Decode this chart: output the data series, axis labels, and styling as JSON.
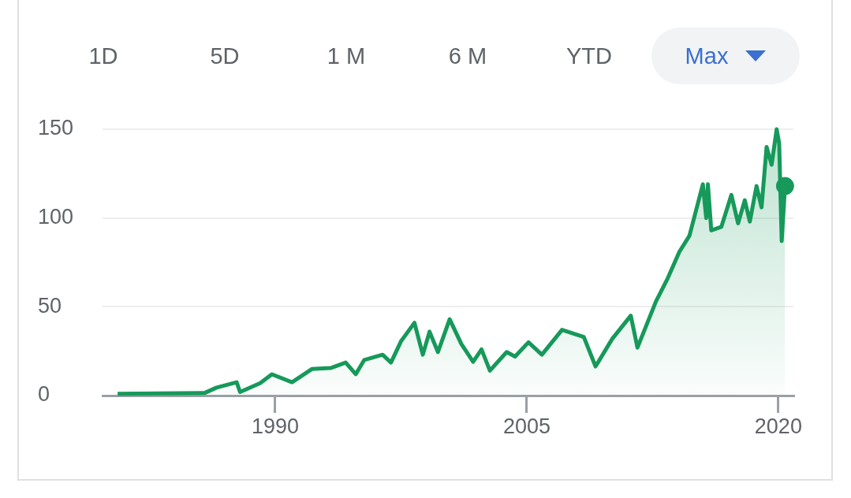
{
  "chart_data": {
    "type": "area",
    "annotations": [
      "1D",
      "5D",
      "1 M",
      "6 M",
      "YTD",
      "Max"
    ],
    "x": [
      1980.6,
      1985.8,
      1986.5,
      1987.7,
      1987.9,
      1989.1,
      1989.8,
      1991.0,
      1992.2,
      1993.3,
      1994.2,
      1994.8,
      1995.3,
      1996.4,
      1996.9,
      1997.5,
      1998.3,
      1998.8,
      1999.2,
      1999.7,
      2000.4,
      2001.1,
      2001.8,
      2002.3,
      2002.8,
      2003.8,
      2004.3,
      2005.1,
      2005.9,
      2007.1,
      2008.4,
      2009.1,
      2010.1,
      2011.2,
      2011.6,
      2012.7,
      2013.4,
      2014.1,
      2014.7,
      2015.5,
      2015.7,
      2015.8,
      2016.0,
      2016.6,
      2017.2,
      2017.6,
      2018.0,
      2018.3,
      2018.7,
      2019.0,
      2019.3,
      2019.6,
      2019.9,
      2020.05,
      2020.2,
      2020.4
    ],
    "series": [
      {
        "type": "area",
        "color": "#16995a",
        "values": [
          1,
          1.5,
          4.5,
          7.5,
          2,
          7,
          12,
          7.5,
          15,
          15.5,
          18.6,
          12,
          20,
          23,
          18.6,
          30.6,
          41,
          23,
          36,
          24.5,
          43,
          29,
          19,
          26,
          14,
          24.5,
          22,
          30,
          23,
          37,
          33,
          16.4,
          32,
          45,
          27,
          53,
          66,
          81,
          90,
          119,
          100,
          119,
          93,
          95,
          113,
          97,
          110,
          98,
          118,
          106,
          140,
          130,
          150,
          142,
          87,
          118
        ]
      },
      {
        "type": "scatter",
        "color": "#16995a",
        "x": [
          2020.4
        ],
        "values": [
          118
        ],
        "marker": "circle"
      }
    ],
    "xlim": [
      1979.7,
      2020.9
    ],
    "xticks": [
      1990,
      2005,
      2020
    ],
    "ylim": [
      0,
      150
    ],
    "yticks": [
      0,
      50,
      100,
      150
    ],
    "grid": "y",
    "legend": false
  }
}
